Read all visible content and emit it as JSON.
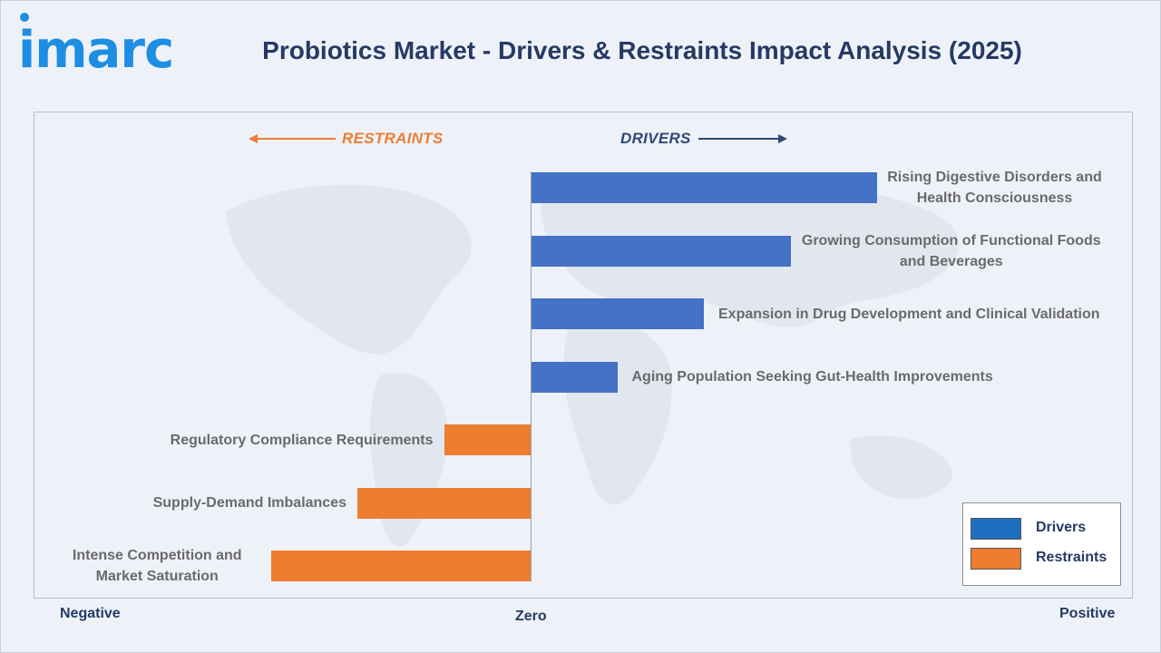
{
  "brand": {
    "logo_text": "imarc",
    "accent": "#1e8ee3"
  },
  "header": {
    "title": "Probiotics Market - Drivers & Restraints Impact Analysis (2025)"
  },
  "chart_data": {
    "type": "bar",
    "orientation": "horizontal",
    "direction_labels": {
      "restraints": "RESTRAINTS",
      "drivers": "DRIVERS"
    },
    "scale_labels": {
      "negative": "Negative",
      "zero": "Zero",
      "positive": "Positive"
    },
    "categories": [
      "Rising Digestive Disorders and Health Consciousness",
      "Growing Consumption of Functional Foods and Beverages",
      "Expansion in Drug Development and Clinical Validation",
      "Aging Population Seeking Gut-Health Improvements",
      "Regulatory Compliance Requirements",
      "Supply-Demand Imbalances",
      "Intense Competition and Market Saturation"
    ],
    "series": [
      {
        "name": "Drivers",
        "color": "#4472c4",
        "values": [
          4,
          3,
          2,
          1,
          null,
          null,
          null
        ]
      },
      {
        "name": "Restraints",
        "color": "#ed7d31",
        "values": [
          null,
          null,
          null,
          null,
          -1,
          -2,
          -3
        ]
      }
    ],
    "label_lines": [
      [
        "Rising Digestive Disorders and",
        "Health Consciousness"
      ],
      [
        "Growing Consumption of Functional Foods",
        "and Beverages"
      ],
      [
        "Expansion in Drug Development and Clinical Validation"
      ],
      [
        "Aging Population Seeking Gut-Health Improvements"
      ],
      [
        "Regulatory Compliance Requirements"
      ],
      [
        "Supply-Demand Imbalances"
      ],
      [
        "Intense Competition and",
        "Market Saturation"
      ]
    ],
    "xlim": [
      -6,
      4
    ],
    "legend": {
      "placement": "bottom-right",
      "entries": [
        "Drivers",
        "Restraints"
      ]
    },
    "grid": false
  },
  "colors": {
    "title": "#253a63",
    "label": "#6a6a6a",
    "drivers_arrow": "#2e4977",
    "restraints_arrow": "#ed7d31"
  }
}
